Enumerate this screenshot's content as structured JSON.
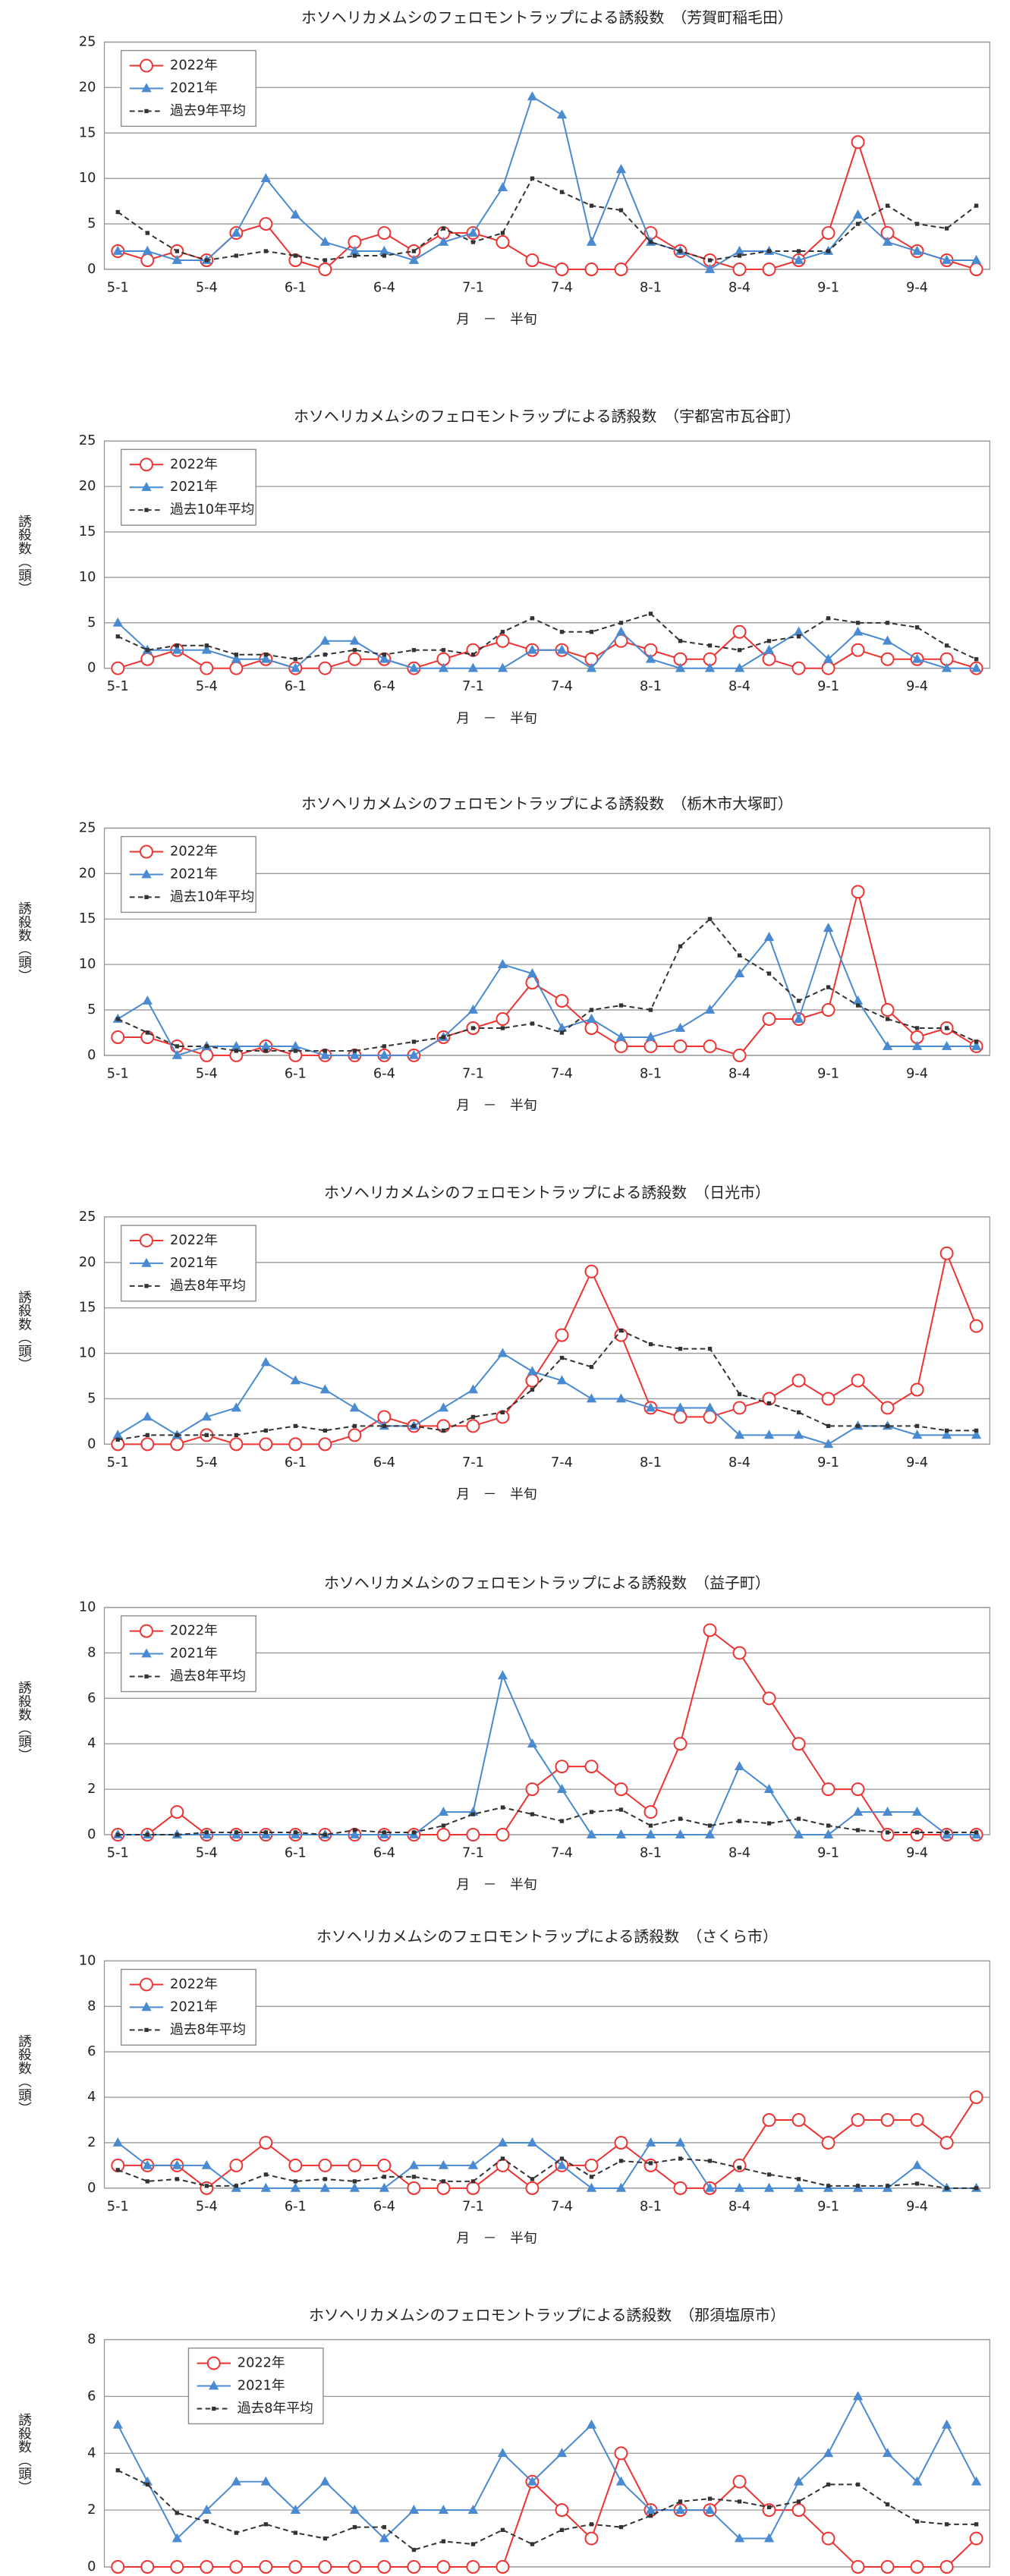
{
  "chart_data": [
    {
      "type": "line",
      "title": "ホソヘリカメムシのフェロモントラップによる誘殺数　（芳賀町稲毛田）",
      "xlabel": "月　－　半旬",
      "categories": [
        "5-1",
        null,
        null,
        "5-4",
        null,
        null,
        "6-1",
        null,
        null,
        "6-4",
        null,
        null,
        "7-1",
        null,
        null,
        "7-4",
        null,
        null,
        "8-1",
        null,
        null,
        "8-4",
        null,
        null,
        "9-1",
        null,
        null,
        "9-4",
        null,
        null
      ],
      "series": [
        {
          "name": "2022年",
          "color": "#ee3333",
          "values": [
            2,
            1,
            2,
            1,
            4,
            5,
            1,
            0,
            3,
            4,
            2,
            4,
            4,
            3,
            1,
            0,
            0,
            0,
            4,
            2,
            1,
            0,
            0,
            1,
            4,
            14,
            4,
            2,
            1,
            0
          ]
        },
        {
          "name": "2021年",
          "color": "#4a8ad0",
          "values": [
            2,
            2,
            1,
            1,
            4,
            10,
            6,
            3,
            2,
            2,
            1,
            3,
            4,
            9,
            19,
            17,
            3,
            11,
            3,
            2,
            0,
            2,
            2,
            1,
            2,
            6,
            3,
            2,
            1,
            1
          ]
        },
        {
          "name": "過去9年平均",
          "color": "#333333",
          "values": [
            6.3,
            4,
            2,
            1,
            1.5,
            2,
            1.5,
            1,
            1.5,
            1.5,
            2,
            4.5,
            3,
            4,
            10,
            8.5,
            7,
            6.5,
            3,
            2,
            1,
            1.5,
            2,
            2,
            2,
            5,
            7,
            5,
            4.5,
            7
          ]
        }
      ],
      "ylim": [
        0,
        25
      ],
      "yticks": [
        0,
        5,
        10,
        15,
        20,
        25
      ],
      "grid": true
    },
    {
      "type": "line",
      "title": "ホソヘリカメムシのフェロモントラップによる誘殺数　（宇都宮市瓦谷町）",
      "ylabel": "誘殺数（頭）",
      "xlabel": "月　－　半旬",
      "categories": [
        "5-1",
        null,
        null,
        "5-4",
        null,
        null,
        "6-1",
        null,
        null,
        "6-4",
        null,
        null,
        "7-1",
        null,
        null,
        "7-4",
        null,
        null,
        "8-1",
        null,
        null,
        "8-4",
        null,
        null,
        "9-1",
        null,
        null,
        "9-4",
        null,
        null
      ],
      "series": [
        {
          "name": "2022年",
          "color": "#ee3333",
          "values": [
            0,
            1,
            2,
            0,
            0,
            1,
            0,
            0,
            1,
            1,
            0,
            1,
            2,
            3,
            2,
            2,
            1,
            3,
            2,
            1,
            1,
            4,
            1,
            0,
            0,
            2,
            1,
            1,
            1,
            0
          ]
        },
        {
          "name": "2021年",
          "color": "#4a8ad0",
          "values": [
            5,
            2,
            2,
            2,
            1,
            1,
            0,
            3,
            3,
            1,
            0,
            0,
            0,
            0,
            2,
            2,
            0,
            4,
            1,
            0,
            0,
            0,
            2,
            4,
            1,
            4,
            3,
            1,
            0,
            0
          ]
        },
        {
          "name": "過去10年平均",
          "color": "#333333",
          "values": [
            3.5,
            2,
            2.5,
            2.5,
            1.5,
            1.5,
            1,
            1.5,
            2,
            1.5,
            2,
            2,
            1.5,
            4,
            5.5,
            4,
            4,
            5,
            6,
            3,
            2.5,
            2,
            3,
            3.5,
            5.5,
            5,
            5,
            4.5,
            2.5,
            1
          ]
        }
      ],
      "ylim": [
        0,
        25
      ],
      "yticks": [
        0,
        5,
        10,
        15,
        20,
        25
      ],
      "grid": true
    },
    {
      "type": "line",
      "title": "ホソヘリカメムシのフェロモントラップによる誘殺数　（栃木市大塚町）",
      "ylabel": "誘殺数（頭）",
      "xlabel": "月　－　半旬",
      "categories": [
        "5-1",
        null,
        null,
        "5-4",
        null,
        null,
        "6-1",
        null,
        null,
        "6-4",
        null,
        null,
        "7-1",
        null,
        null,
        "7-4",
        null,
        null,
        "8-1",
        null,
        null,
        "8-4",
        null,
        null,
        "9-1",
        null,
        null,
        "9-4",
        null,
        null
      ],
      "series": [
        {
          "name": "2022年",
          "color": "#ee3333",
          "values": [
            2,
            2,
            1,
            0,
            0,
            1,
            0,
            0,
            0,
            0,
            0,
            2,
            3,
            4,
            8,
            6,
            3,
            1,
            1,
            1,
            1,
            0,
            4,
            4,
            5,
            18,
            5,
            2,
            3,
            1
          ]
        },
        {
          "name": "2021年",
          "color": "#4a8ad0",
          "values": [
            4,
            6,
            0,
            1,
            1,
            1,
            1,
            0,
            0,
            0,
            0,
            2,
            5,
            10,
            9,
            3,
            4,
            2,
            2,
            3,
            5,
            9,
            13,
            4,
            14,
            6,
            1,
            1,
            1,
            1
          ]
        },
        {
          "name": "過去10年平均",
          "color": "#333333",
          "values": [
            4,
            2.5,
            1,
            1,
            0.5,
            0.5,
            0.5,
            0.5,
            0.5,
            1,
            1.5,
            2,
            3,
            3,
            3.5,
            2.5,
            5,
            5.5,
            5,
            12,
            15,
            11,
            9,
            6,
            7.5,
            5.5,
            4,
            3,
            3,
            1.5
          ]
        }
      ],
      "ylim": [
        0,
        25
      ],
      "yticks": [
        0,
        5,
        10,
        15,
        20,
        25
      ],
      "grid": true
    },
    {
      "type": "line",
      "title": "ホソヘリカメムシのフェロモントラップによる誘殺数　（日光市）",
      "ylabel": "誘殺数（頭）",
      "xlabel": "月　－　半旬",
      "categories": [
        "5-1",
        null,
        null,
        "5-4",
        null,
        null,
        "6-1",
        null,
        null,
        "6-4",
        null,
        null,
        "7-1",
        null,
        null,
        "7-4",
        null,
        null,
        "8-1",
        null,
        null,
        "8-4",
        null,
        null,
        "9-1",
        null,
        null,
        "9-4",
        null,
        null
      ],
      "series": [
        {
          "name": "2022年",
          "color": "#ee3333",
          "values": [
            0,
            0,
            0,
            1,
            0,
            0,
            0,
            0,
            1,
            3,
            2,
            2,
            2,
            3,
            7,
            12,
            19,
            12,
            4,
            3,
            3,
            4,
            5,
            7,
            5,
            7,
            4,
            6,
            21,
            13
          ]
        },
        {
          "name": "2021年",
          "color": "#4a8ad0",
          "values": [
            1,
            3,
            1,
            3,
            4,
            9,
            7,
            6,
            4,
            2,
            2,
            4,
            6,
            10,
            8,
            7,
            5,
            5,
            4,
            4,
            4,
            1,
            1,
            1,
            0,
            2,
            2,
            1,
            1,
            1
          ]
        },
        {
          "name": "過去8年平均",
          "color": "#333333",
          "values": [
            0.5,
            1,
            1,
            1,
            1,
            1.5,
            2,
            1.5,
            2,
            2,
            2,
            1.5,
            3,
            3.5,
            6,
            9.5,
            8.5,
            12.5,
            11,
            10.5,
            10.5,
            5.5,
            4.5,
            3.5,
            2,
            2,
            2,
            2,
            1.5,
            1.5
          ]
        }
      ],
      "ylim": [
        0,
        25
      ],
      "yticks": [
        0,
        5,
        10,
        15,
        20,
        25
      ],
      "grid": true
    },
    {
      "type": "line",
      "title": "ホソヘリカメムシのフェロモントラップによる誘殺数　（益子町）",
      "ylabel": "誘殺数（頭）",
      "xlabel": "月　－　半旬",
      "categories": [
        "5-1",
        null,
        null,
        "5-4",
        null,
        null,
        "6-1",
        null,
        null,
        "6-4",
        null,
        null,
        "7-1",
        null,
        null,
        "7-4",
        null,
        null,
        "8-1",
        null,
        null,
        "8-4",
        null,
        null,
        "9-1",
        null,
        null,
        "9-4",
        null,
        null
      ],
      "series": [
        {
          "name": "2022年",
          "color": "#ee3333",
          "values": [
            0,
            0,
            1,
            0,
            0,
            0,
            0,
            0,
            0,
            0,
            0,
            0,
            0,
            0,
            2,
            3,
            3,
            2,
            1,
            4,
            9,
            8,
            6,
            4,
            2,
            2,
            0,
            0,
            0,
            0
          ]
        },
        {
          "name": "2021年",
          "color": "#4a8ad0",
          "values": [
            0,
            0,
            0,
            0,
            0,
            0,
            0,
            0,
            0,
            0,
            0,
            1,
            1,
            7,
            4,
            2,
            0,
            0,
            0,
            0,
            0,
            3,
            2,
            0,
            0,
            1,
            1,
            1,
            0,
            0
          ]
        },
        {
          "name": "過去8年平均",
          "color": "#333333",
          "values": [
            0,
            0,
            0,
            0.1,
            0.1,
            0.1,
            0.1,
            0,
            0.2,
            0.1,
            0.1,
            0.4,
            0.9,
            1.2,
            0.9,
            0.6,
            1,
            1.1,
            0.4,
            0.7,
            0.4,
            0.6,
            0.5,
            0.7,
            0.4,
            0.2,
            0.1,
            0.1,
            0.1,
            0.1
          ]
        }
      ],
      "ylim": [
        0,
        10
      ],
      "yticks": [
        0,
        2,
        4,
        6,
        8,
        10
      ],
      "grid": true
    },
    {
      "type": "line",
      "title": "ホソヘリカメムシのフェロモントラップによる誘殺数　（さくら市）",
      "ylabel": "誘殺数（頭）",
      "xlabel": "月　－　半旬",
      "categories": [
        "5-1",
        null,
        null,
        "5-4",
        null,
        null,
        "6-1",
        null,
        null,
        "6-4",
        null,
        null,
        "7-1",
        null,
        null,
        "7-4",
        null,
        null,
        "8-1",
        null,
        null,
        "8-4",
        null,
        null,
        "9-1",
        null,
        null,
        "9-4",
        null,
        null
      ],
      "series": [
        {
          "name": "2022年",
          "color": "#ee3333",
          "values": [
            1,
            1,
            1,
            0,
            1,
            2,
            1,
            1,
            1,
            1,
            0,
            0,
            0,
            1,
            0,
            1,
            1,
            2,
            1,
            0,
            0,
            1,
            3,
            3,
            2,
            3,
            3,
            3,
            2,
            4
          ]
        },
        {
          "name": "2021年",
          "color": "#4a8ad0",
          "values": [
            2,
            1,
            1,
            1,
            0,
            0,
            0,
            0,
            0,
            0,
            1,
            1,
            1,
            2,
            2,
            1,
            0,
            0,
            2,
            2,
            0,
            0,
            0,
            0,
            0,
            0,
            0,
            1,
            0,
            0
          ]
        },
        {
          "name": "過去8年平均",
          "color": "#333333",
          "values": [
            0.8,
            0.3,
            0.4,
            0.1,
            0.1,
            0.6,
            0.3,
            0.4,
            0.3,
            0.5,
            0.5,
            0.3,
            0.3,
            1.3,
            0.4,
            1.3,
            0.5,
            1.2,
            1.1,
            1.3,
            1.2,
            0.9,
            0.6,
            0.4,
            0.1,
            0.1,
            0.1,
            0.2,
            0,
            0
          ]
        }
      ],
      "ylim": [
        0,
        10
      ],
      "yticks": [
        0,
        2,
        4,
        6,
        8,
        10
      ],
      "grid": true
    },
    {
      "type": "line",
      "title": "ホソヘリカメムシのフェロモントラップによる誘殺数　（那須塩原市）",
      "ylabel": "誘殺数（頭）",
      "xlabel": "月　－　半旬",
      "categories": [
        "5-1",
        null,
        null,
        "5-4",
        null,
        null,
        "6-1",
        null,
        null,
        "6-4",
        null,
        null,
        "7-1",
        null,
        null,
        "7-4",
        null,
        null,
        "8-1",
        null,
        null,
        "8-4",
        null,
        null,
        "9-1",
        null,
        null,
        "9-4",
        null,
        null
      ],
      "series": [
        {
          "name": "2022年",
          "color": "#ee3333",
          "values": [
            0,
            0,
            0,
            0,
            0,
            0,
            0,
            0,
            0,
            0,
            0,
            0,
            0,
            0,
            3,
            2,
            1,
            4,
            2,
            2,
            2,
            3,
            2,
            2,
            1,
            0,
            0,
            0,
            0,
            1
          ]
        },
        {
          "name": "2021年",
          "color": "#4a8ad0",
          "values": [
            5,
            3,
            1,
            2,
            3,
            3,
            2,
            3,
            2,
            1,
            2,
            2,
            2,
            4,
            3,
            4,
            5,
            3,
            2,
            2,
            2,
            1,
            1,
            3,
            4,
            6,
            4,
            3,
            5,
            3
          ]
        },
        {
          "name": "過去8年平均",
          "color": "#333333",
          "values": [
            3.4,
            2.9,
            1.9,
            1.6,
            1.2,
            1.5,
            1.2,
            1,
            1.4,
            1.4,
            0.6,
            0.9,
            0.8,
            1.3,
            0.8,
            1.3,
            1.5,
            1.4,
            1.8,
            2.3,
            2.4,
            2.3,
            2.1,
            2.3,
            2.9,
            2.9,
            2.2,
            1.6,
            1.5,
            1.5
          ]
        }
      ],
      "ylim": [
        0,
        8
      ],
      "yticks": [
        0,
        2,
        4,
        6,
        8
      ],
      "grid": true
    }
  ]
}
